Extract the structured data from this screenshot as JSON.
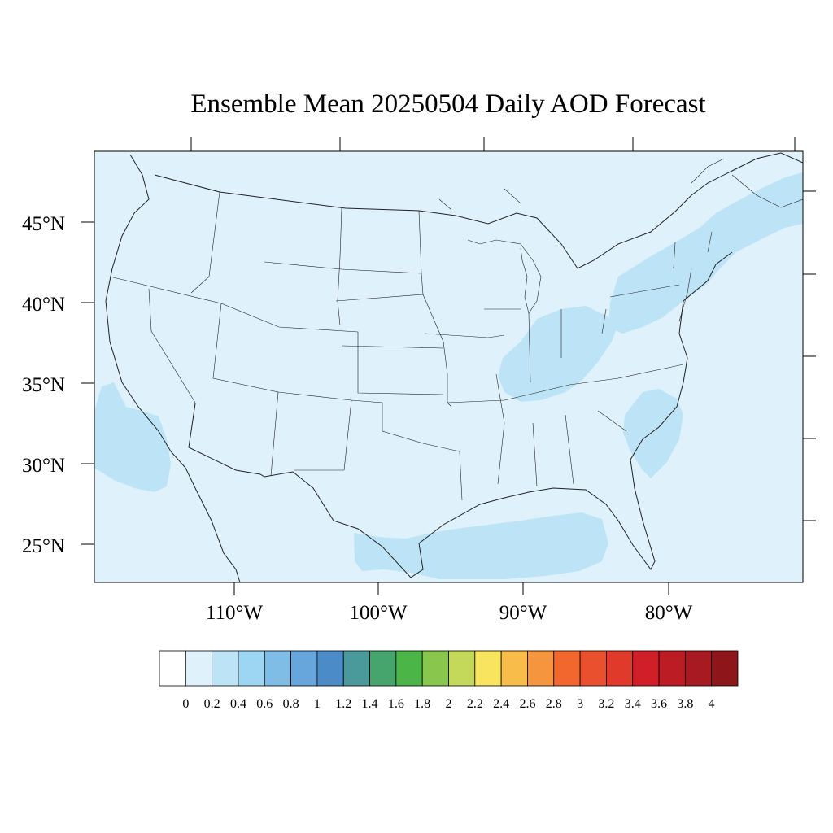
{
  "title": "Ensemble Mean 20250504 Daily AOD Forecast",
  "map": {
    "background_color": "#dff1fb",
    "lat_labels": [
      "45°N",
      "40°N",
      "35°N",
      "30°N",
      "25°N"
    ],
    "lon_labels": [
      "110°W",
      "100°W",
      "90°W",
      "80°W"
    ],
    "plumes": [
      {
        "name": "northeast-plume",
        "level": "0.2-0.4",
        "color": "#bde4f6"
      },
      {
        "name": "ohio-valley-plume",
        "level": "0.2-0.4",
        "color": "#bde4f6"
      },
      {
        "name": "southeast-coast-plume",
        "level": "0.2-0.4",
        "color": "#bde4f6"
      },
      {
        "name": "california-offshore-plume",
        "level": "0.2-0.4",
        "color": "#bde4f6"
      },
      {
        "name": "gulf-plume",
        "level": "0.2-0.4",
        "color": "#bde4f6"
      }
    ]
  },
  "colorbar": {
    "tick_labels": [
      "0",
      "0.2",
      "0.4",
      "0.6",
      "0.8",
      "1",
      "1.2",
      "1.4",
      "1.6",
      "1.8",
      "2",
      "2.2",
      "2.4",
      "2.6",
      "2.8",
      "3",
      "3.2",
      "3.4",
      "3.6",
      "3.8",
      "4"
    ],
    "colors": [
      "#ffffff",
      "#dff1fb",
      "#bde4f6",
      "#9dd6f2",
      "#80bde6",
      "#67a6dc",
      "#4a8bc8",
      "#4a9a9c",
      "#46a56d",
      "#4cb547",
      "#88c64e",
      "#c4d85a",
      "#f8e45e",
      "#f8bc4b",
      "#f5953e",
      "#f1672e",
      "#e9502d",
      "#e03a2a",
      "#d01f28",
      "#bc1c24",
      "#a81a21",
      "#8e161b"
    ]
  }
}
